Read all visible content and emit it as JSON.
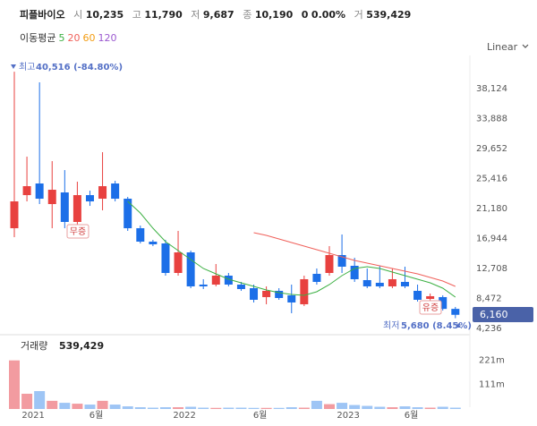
{
  "header": {
    "name": "피플바이오",
    "open_label": "시",
    "open": "10,235",
    "high_label": "고",
    "high": "11,790",
    "low_label": "저",
    "low": "9,687",
    "close_label": "종",
    "close": "10,190",
    "change": "0",
    "change_pct": "0.00%",
    "volume_label": "거",
    "volume": "539,429"
  },
  "ma_legend": {
    "title": "이동평균",
    "periods": [
      {
        "label": "5",
        "color": "#3cb043"
      },
      {
        "label": "20",
        "color": "#f0605a"
      },
      {
        "label": "60",
        "color": "#f39c12"
      },
      {
        "label": "120",
        "color": "#9b59d0"
      }
    ]
  },
  "scale_menu": "Linear",
  "chart_data": {
    "type": "candlestick",
    "categories": [
      null,
      null,
      "2021",
      null,
      null,
      null,
      null,
      "6월",
      null,
      null,
      null,
      null,
      null,
      null,
      "2022",
      null,
      null,
      null,
      null,
      null,
      "6월",
      null,
      null,
      null,
      null,
      null,
      null,
      "2023",
      null,
      null,
      null,
      null,
      "6월",
      null,
      null,
      null
    ],
    "open": [
      18398,
      23077,
      24721,
      21812,
      23457,
      19284,
      23077,
      22571,
      24721,
      22571,
      18398,
      16502,
      16249,
      12076,
      14984,
      10432,
      10432,
      11697,
      10432,
      9926,
      8662,
      9547,
      8915,
      7650,
      11950,
      12076,
      14605,
      13087,
      11064,
      10685,
      10179,
      10811,
      9547,
      8409,
      8662,
      6998
    ],
    "high": [
      40527,
      28514,
      39010,
      27881,
      26617,
      24974,
      23710,
      29146,
      25100,
      22824,
      18778,
      16755,
      16755,
      18019,
      15237,
      11191,
      13340,
      12076,
      10811,
      10432,
      10179,
      9926,
      10432,
      11697,
      12708,
      15869,
      17513,
      14226,
      12708,
      13087,
      12708,
      12961,
      10432,
      9167,
      8915,
      7271
    ],
    "low": [
      17134,
      22192,
      21812,
      18398,
      18398,
      18398,
      21559,
      20928,
      22192,
      18019,
      16249,
      15869,
      11697,
      11697,
      9926,
      9800,
      10179,
      10179,
      9547,
      7903,
      7650,
      8282,
      6386,
      7397,
      10432,
      11697,
      12076,
      10811,
      9926,
      9926,
      9926,
      9926,
      8029,
      7650,
      6765,
      5680
    ],
    "close": [
      22192,
      24342,
      22571,
      23836,
      19284,
      23077,
      22192,
      24342,
      22571,
      18398,
      16502,
      16123,
      12076,
      14984,
      10179,
      10179,
      11697,
      10432,
      9800,
      8282,
      9547,
      8535,
      7903,
      11191,
      10811,
      14605,
      12961,
      11191,
      10179,
      10179,
      11191,
      10179,
      8282,
      8788,
      6998,
      6160
    ],
    "up_color": "#e8413f",
    "down_color": "#1c6fe8",
    "moving_averages": [
      {
        "name": "5",
        "color": "#3cb043",
        "values": [
          null,
          null,
          null,
          null,
          null,
          null,
          null,
          null,
          null,
          22192,
          20548,
          18398,
          16502,
          15237,
          13973,
          12708,
          11950,
          11191,
          10685,
          10179,
          9673,
          9294,
          9041,
          8915,
          9420,
          10432,
          11697,
          12708,
          12961,
          12708,
          12202,
          11697,
          11191,
          10685,
          9926,
          8662
        ]
      },
      {
        "name": "20",
        "color": "#f0605a",
        "values": [
          null,
          null,
          null,
          null,
          null,
          null,
          null,
          null,
          null,
          null,
          null,
          null,
          null,
          null,
          null,
          null,
          null,
          null,
          null,
          17766,
          17387,
          16881,
          16375,
          15869,
          15363,
          14858,
          14352,
          13846,
          13467,
          13087,
          12708,
          12329,
          11950,
          11444,
          10938,
          10179
        ]
      }
    ],
    "ylim": [
      3600,
      41800
    ],
    "yticks": [
      {
        "value": 4236,
        "label": "4,236"
      },
      {
        "value": 8472,
        "label": "8,472"
      },
      {
        "value": 12708,
        "label": "12,708"
      },
      {
        "value": 16944,
        "label": "16,944"
      },
      {
        "value": 21180,
        "label": "21,180"
      },
      {
        "value": 25416,
        "label": "25,416"
      },
      {
        "value": 29652,
        "label": "29,652"
      },
      {
        "value": 33888,
        "label": "33,888"
      },
      {
        "value": 38124,
        "label": "38,124"
      }
    ],
    "last_price": "6,160",
    "max_annotation": {
      "label": "최고",
      "value": "40,516 (-84.80%)"
    },
    "min_annotation": {
      "label": "최저",
      "value": "5,680 (8.45%)"
    },
    "events": [
      {
        "label": "무증"
      },
      {
        "label": "유증"
      }
    ],
    "volume": {
      "title": "거래량",
      "current": "539,429",
      "values": [
        220,
        69,
        81,
        37,
        28,
        24,
        20,
        37,
        20,
        12,
        8,
        6,
        8,
        8,
        10,
        6,
        5,
        6,
        6,
        5,
        5,
        5,
        8,
        6,
        37,
        22,
        28,
        18,
        14,
        10,
        8,
        12,
        8,
        6,
        10,
        6
      ],
      "up_color": "#f29ba0",
      "down_color": "#9ec5f5",
      "ylim": [
        0,
        320
      ],
      "yticks": [
        {
          "value": 111,
          "label": "111m"
        },
        {
          "value": 221,
          "label": "221m"
        }
      ]
    }
  }
}
